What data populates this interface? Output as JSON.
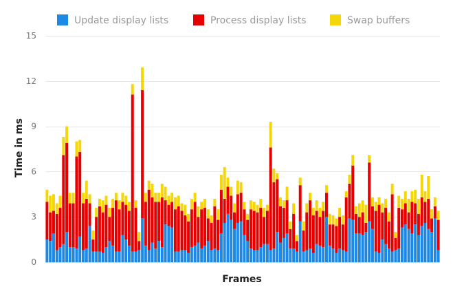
{
  "chart_data": {
    "type": "bar",
    "stacked": true,
    "xlabel": "Frames",
    "ylabel": "Time in ms",
    "ylim": [
      0,
      15
    ],
    "yticks": [
      0,
      3,
      6,
      9,
      12,
      15
    ],
    "grid": true,
    "legend_position": "top",
    "frame_count": 120,
    "series": [
      {
        "name": "Update display lists",
        "color": "#1e88e5",
        "values": [
          1.5,
          1.4,
          1.9,
          0.8,
          1.0,
          1.2,
          2.0,
          1.0,
          1.0,
          0.9,
          1.7,
          0.8,
          0.9,
          2.4,
          0.7,
          0.7,
          0.7,
          0.6,
          1.0,
          1.4,
          1.1,
          0.7,
          0.7,
          1.8,
          1.5,
          1.1,
          0.7,
          0.7,
          0.8,
          2.9,
          1.1,
          0.8,
          1.3,
          0.9,
          1.4,
          1.0,
          2.5,
          2.4,
          2.3,
          0.7,
          0.7,
          0.8,
          0.8,
          0.6,
          1.0,
          1.1,
          1.3,
          0.9,
          1.1,
          1.4,
          0.8,
          0.9,
          0.8,
          1.9,
          2.6,
          3.2,
          2.8,
          2.2,
          2.6,
          2.7,
          1.8,
          1.4,
          0.9,
          0.8,
          0.8,
          1.0,
          1.2,
          1.2,
          0.8,
          0.9,
          2.0,
          1.3,
          1.6,
          1.9,
          0.9,
          0.9,
          0.7,
          2.7,
          0.7,
          0.8,
          0.9,
          0.6,
          1.2,
          1.1,
          1.0,
          3.0,
          1.1,
          0.9,
          0.6,
          0.9,
          0.8,
          0.7,
          2.9,
          2.8,
          1.9,
          1.9,
          1.8,
          2.0,
          2.7,
          2.2,
          0.7,
          0.6,
          1.5,
          1.2,
          0.9,
          0.7,
          0.8,
          0.9,
          2.3,
          2.5,
          2.2,
          1.9,
          2.5,
          1.8,
          2.4,
          2.6,
          2.2,
          2.0,
          2.9,
          0.8
        ],
        "values_note": ""
      },
      {
        "name": "Process display lists",
        "color": "#e60000",
        "values": [
          2.5,
          1.9,
          1.5,
          2.4,
          2.6,
          5.9,
          5.9,
          2.9,
          2.9,
          6.1,
          5.6,
          3.1,
          3.3,
          1.5,
          0.8,
          2.3,
          3.0,
          2.7,
          2.8,
          1.6,
          2.5,
          3.4,
          2.8,
          2.2,
          2.3,
          2.3,
          10.4,
          2.9,
          0.6,
          8.5,
          2.9,
          4.0,
          3.0,
          3.1,
          2.6,
          3.3,
          1.6,
          1.4,
          1.7,
          2.8,
          3.0,
          2.6,
          2.3,
          2.1,
          2.5,
          2.9,
          1.7,
          2.6,
          2.5,
          1.5,
          1.8,
          2.8,
          2.0,
          2.9,
          1.6,
          1.8,
          1.6,
          1.1,
          1.9,
          1.9,
          1.7,
          1.4,
          2.6,
          2.6,
          2.5,
          2.6,
          1.8,
          2.2,
          6.8,
          4.4,
          3.5,
          2.4,
          2.0,
          2.2,
          1.3,
          2.3,
          0.7,
          2.4,
          1.4,
          2.5,
          3.2,
          2.5,
          2.2,
          1.9,
          2.4,
          1.6,
          1.4,
          1.6,
          1.8,
          2.1,
          1.7,
          3.6,
          2.3,
          3.6,
          1.3,
          1.1,
          1.5,
          0.6,
          3.9,
          1.5,
          2.7,
          3.2,
          1.8,
          2.4,
          1.8,
          3.8,
          0.8,
          2.7,
          1.2,
          1.4,
          1.1,
          2.1,
          1.4,
          1.4,
          1.9,
          1.4,
          2.0,
          0.9,
          0.8,
          2.0
        ],
        "values_note": ""
      },
      {
        "name": "Swap buffers",
        "color": "#f5d60a",
        "values": [
          0.8,
          1.1,
          1.1,
          0.7,
          0.8,
          1.2,
          1.1,
          0.7,
          0.7,
          1.0,
          0.8,
          0.7,
          1.2,
          0.6,
          0.6,
          0.6,
          0.5,
          0.8,
          0.6,
          0.6,
          0.6,
          0.5,
          0.6,
          0.6,
          0.6,
          0.6,
          0.7,
          0.5,
          0.6,
          1.5,
          0.6,
          0.6,
          0.9,
          0.6,
          0.6,
          0.9,
          0.9,
          0.6,
          0.6,
          0.8,
          0.7,
          0.5,
          0.7,
          0.5,
          0.7,
          0.6,
          0.7,
          0.5,
          0.6,
          0.6,
          0.5,
          0.5,
          0.7,
          1.0,
          2.1,
          0.6,
          0.6,
          0.6,
          0.9,
          0.7,
          0.5,
          0.4,
          0.6,
          0.6,
          0.5,
          0.6,
          0.6,
          0.4,
          1.7,
          0.9,
          0.4,
          0.6,
          0.5,
          0.9,
          0.5,
          0.7,
          0.4,
          0.5,
          0.6,
          0.6,
          0.5,
          0.5,
          0.7,
          0.6,
          0.6,
          0.5,
          0.7,
          0.6,
          0.5,
          0.6,
          0.6,
          0.4,
          0.6,
          0.7,
          0.5,
          0.9,
          0.8,
          1.2,
          0.5,
          0.6,
          0.6,
          0.5,
          0.6,
          0.6,
          0.6,
          0.7,
          0.4,
          0.8,
          0.7,
          0.8,
          0.9,
          0.7,
          0.9,
          1.0,
          1.5,
          0.7,
          1.5,
          0.6,
          0.6,
          0.6
        ],
        "values_note": ""
      }
    ]
  }
}
